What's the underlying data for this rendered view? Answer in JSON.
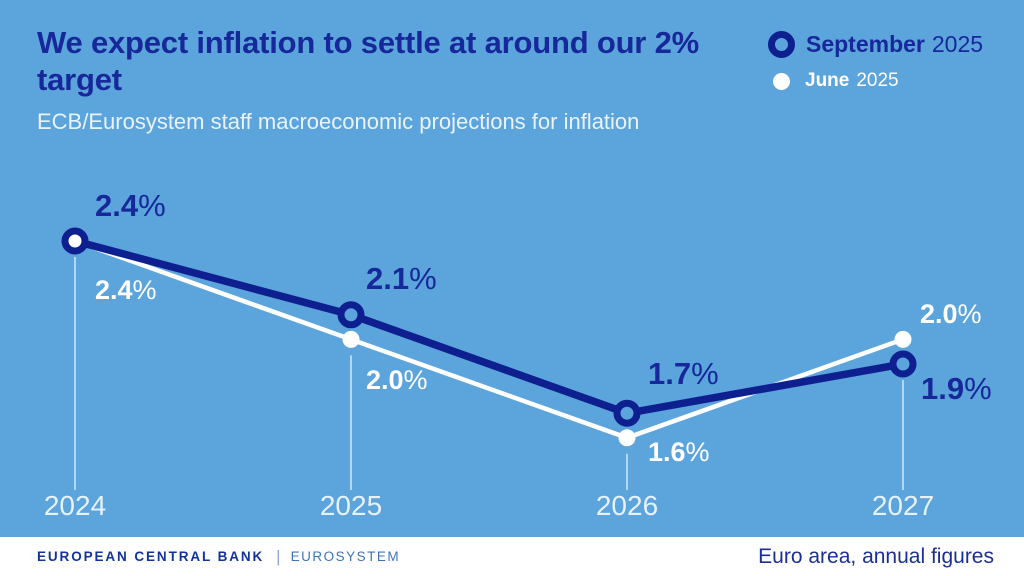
{
  "header": {
    "title": "We expect inflation to settle at around our 2% target",
    "subtitle": "ECB/Eurosystem staff macroeconomic projections for inflation"
  },
  "legend": {
    "september": {
      "label": "September",
      "year": "2025",
      "marker": "open-circle"
    },
    "june": {
      "label": "June",
      "year": "2025",
      "marker": "filled-dot"
    }
  },
  "chart_data": {
    "type": "line",
    "title": "ECB/Eurosystem staff macroeconomic projections for inflation",
    "categories": [
      "2024",
      "2025",
      "2026",
      "2027"
    ],
    "series": [
      {
        "name": "September 2025",
        "values": [
          2.4,
          2.1,
          1.7,
          1.9
        ],
        "color": "#0e2090",
        "marker": "open-circle",
        "point_labels": [
          {
            "num": "2.4",
            "pct": "%"
          },
          {
            "num": "2.1",
            "pct": "%"
          },
          {
            "num": "1.7",
            "pct": "%"
          },
          {
            "num": "1.9",
            "pct": "%"
          }
        ]
      },
      {
        "name": "June 2025",
        "values": [
          2.4,
          2.0,
          1.6,
          2.0
        ],
        "color": "#ffffff",
        "marker": "filled-dot",
        "point_labels": [
          {
            "num": "2.4",
            "pct": "%"
          },
          {
            "num": "2.0",
            "pct": "%"
          },
          {
            "num": "1.6",
            "pct": "%"
          },
          {
            "num": "2.0",
            "pct": "%"
          }
        ]
      }
    ],
    "xlabel": "",
    "ylabel": "",
    "unit": "percent",
    "ylim": [
      1.4,
      2.6
    ],
    "grid": "vertical-category-gridlines",
    "legend_position": "top-right"
  },
  "footer": {
    "brand_bold": "EUROPEAN CENTRAL BANK",
    "brand_divider": "|",
    "brand_light": "EUROSYSTEM",
    "note": "Euro area, annual figures"
  },
  "colors": {
    "background": "#5ca4dc",
    "navy_text": "#17289a",
    "navy_line": "#0e2090",
    "white": "#ffffff",
    "gridline": "rgba(255,255,255,0.55)"
  }
}
